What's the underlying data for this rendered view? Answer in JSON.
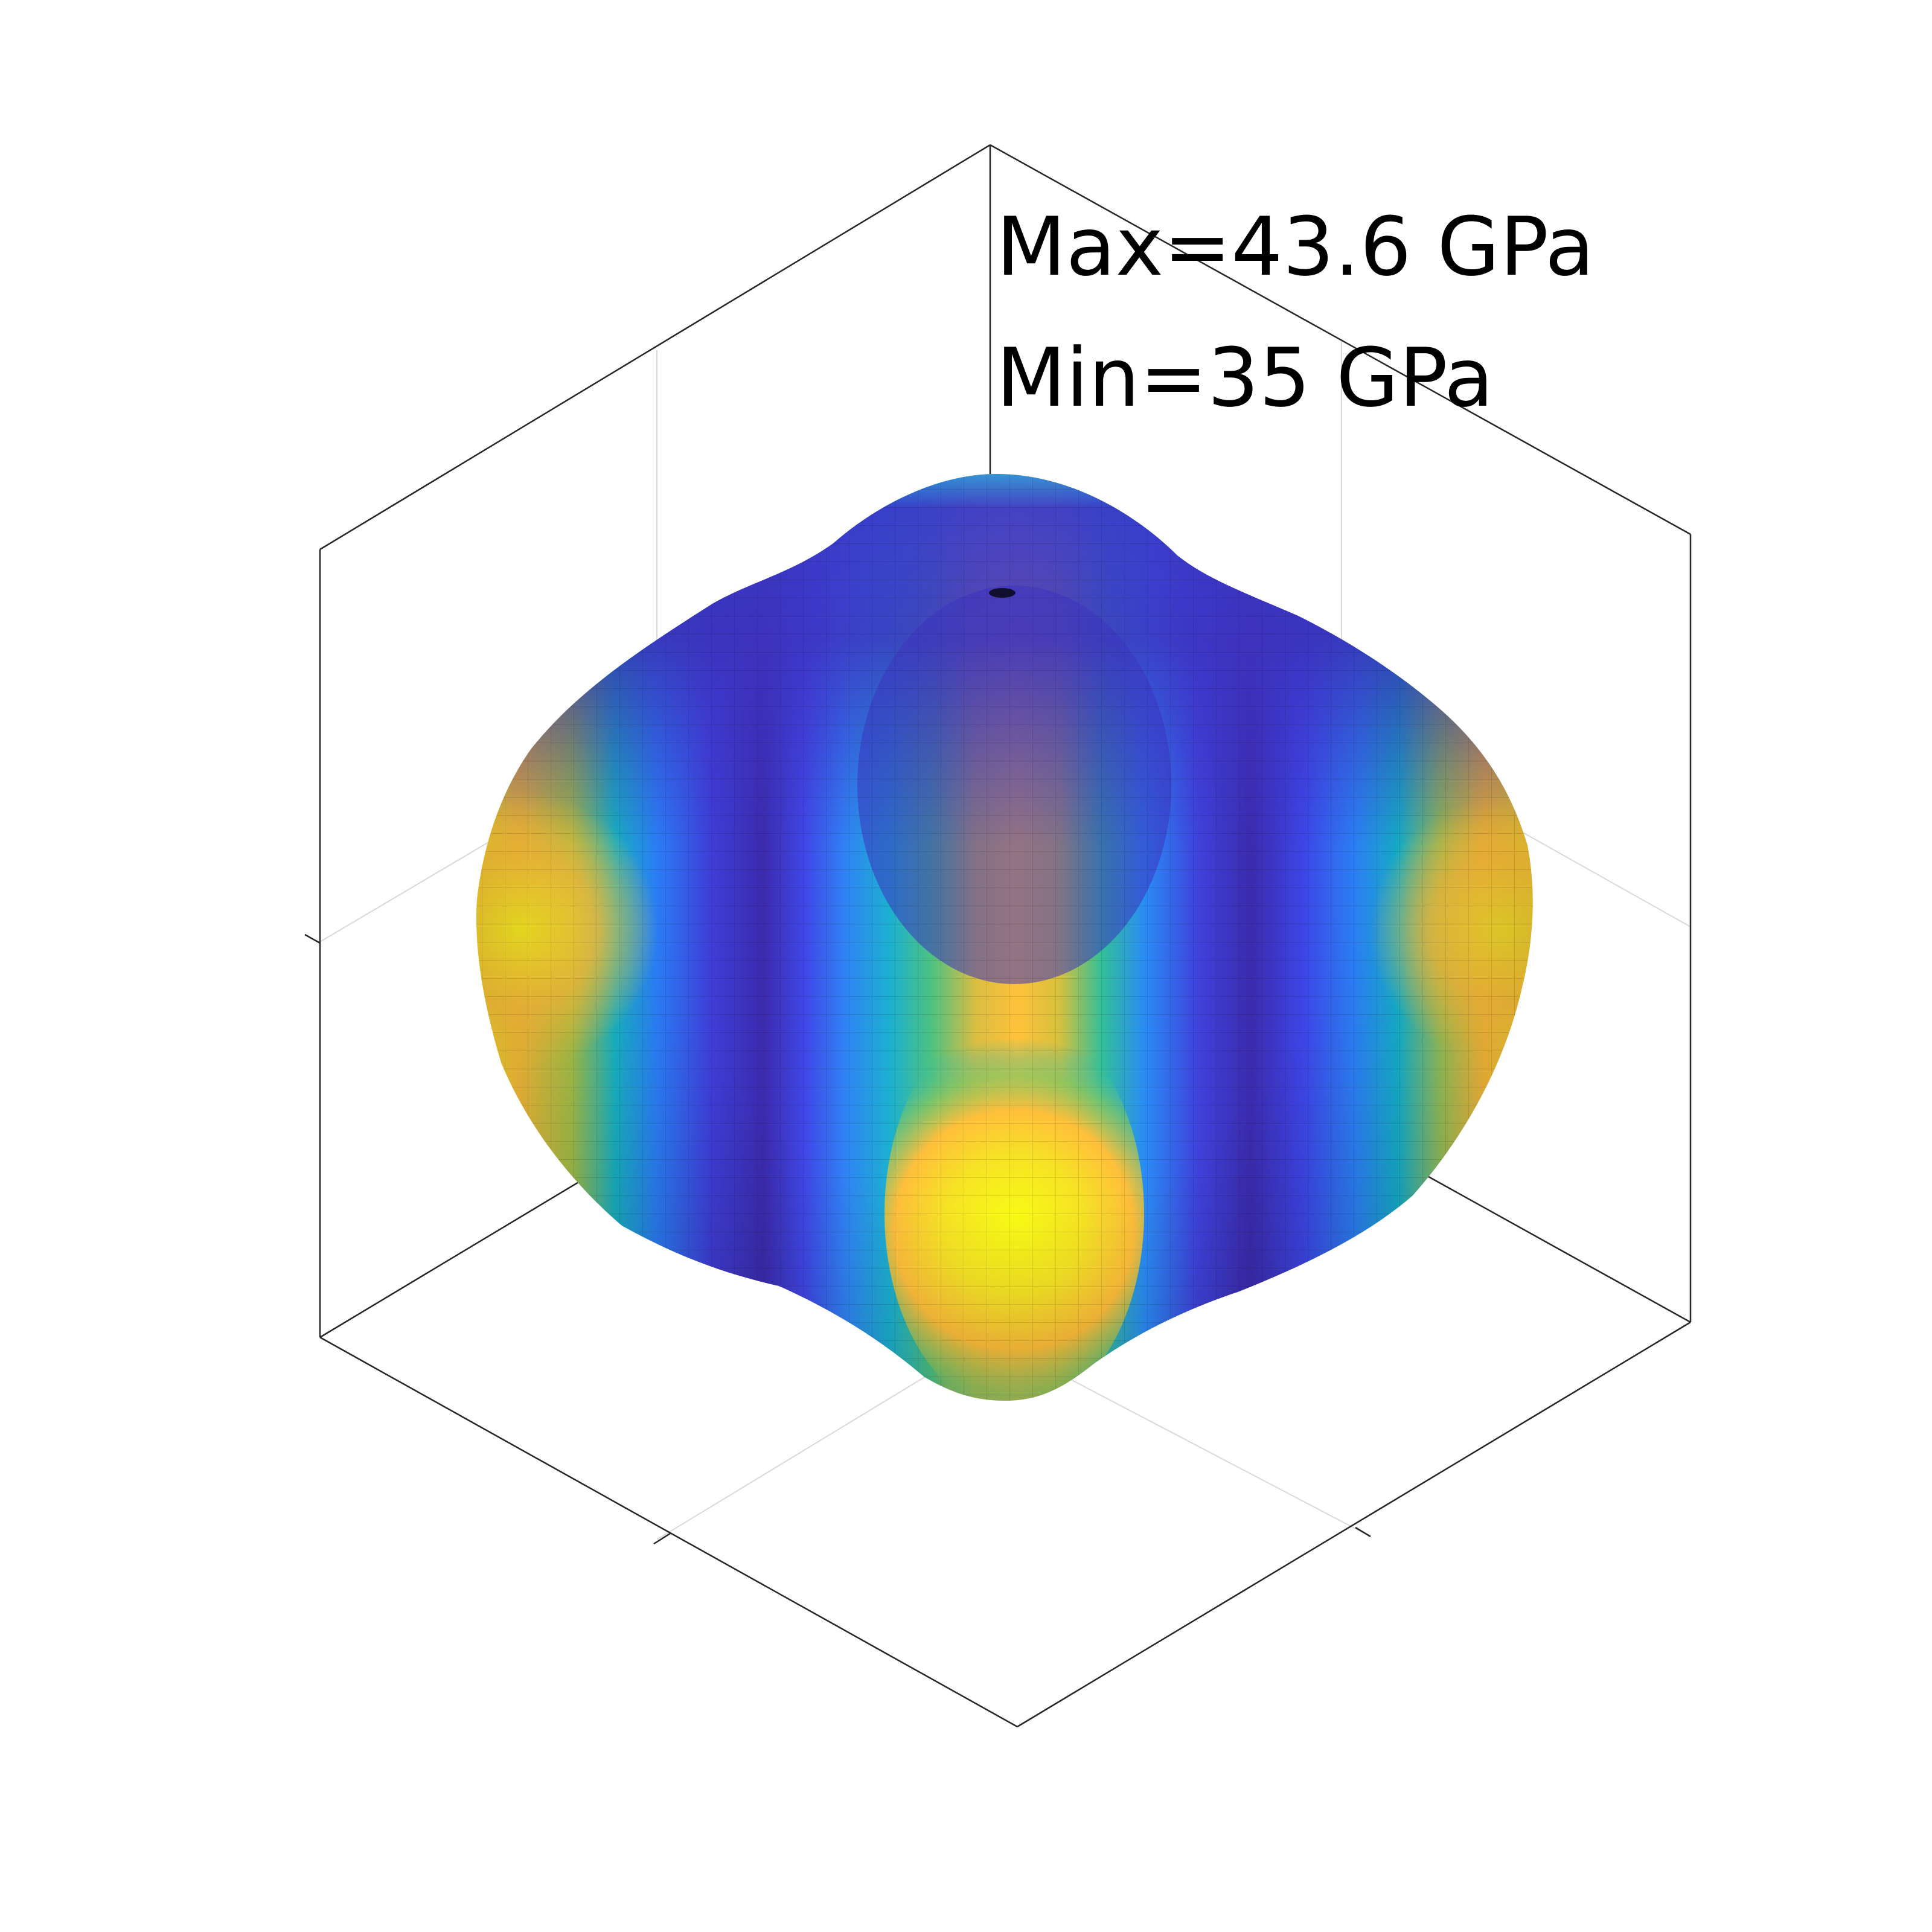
{
  "chart_data": {
    "type": "3d-surface",
    "title": "",
    "annotations": [
      "Max=43.6 GPa",
      "Min=35 GPa"
    ],
    "max_value": 43.6,
    "min_value": 35,
    "unit": "GPa",
    "colormap": "parula",
    "colormap_stops": [
      "#3e26a8",
      "#4a4ff6",
      "#2a86f9",
      "#13b2d2",
      "#3fc58d",
      "#c2c23f",
      "#ffb93c",
      "#f9fb14"
    ],
    "axes": {
      "box": true,
      "grid": true,
      "tick_labels": false
    },
    "xlabel": "",
    "ylabel": "",
    "zlabel": ""
  }
}
